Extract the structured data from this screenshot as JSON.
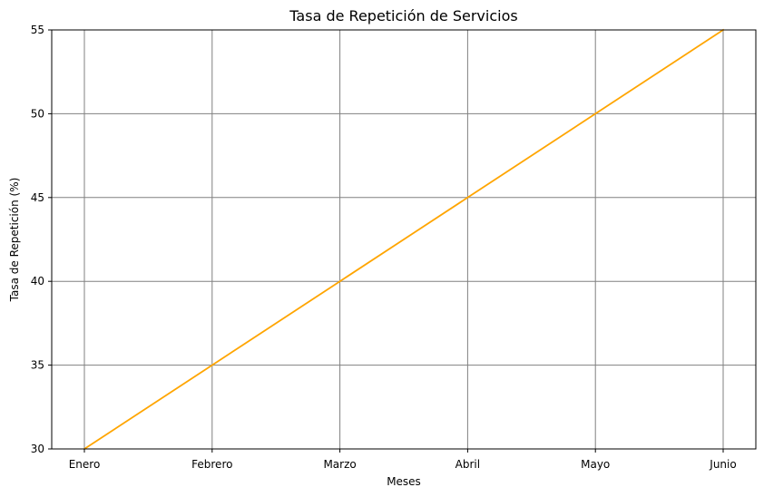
{
  "chart_data": {
    "type": "line",
    "title": "Tasa de Repetición de Servicios",
    "xlabel": "Meses",
    "ylabel": "Tasa de Repetición (%)",
    "categories": [
      "Enero",
      "Febrero",
      "Marzo",
      "Abril",
      "Mayo",
      "Junio"
    ],
    "series": [
      {
        "values": [
          30,
          35,
          40,
          45,
          50,
          55
        ],
        "color": "#ffa500"
      }
    ],
    "ylim": [
      30,
      55
    ],
    "yticks": [
      30,
      35,
      40,
      45,
      50,
      55
    ],
    "grid": true,
    "grid_color": "#808080",
    "legend": "none"
  }
}
